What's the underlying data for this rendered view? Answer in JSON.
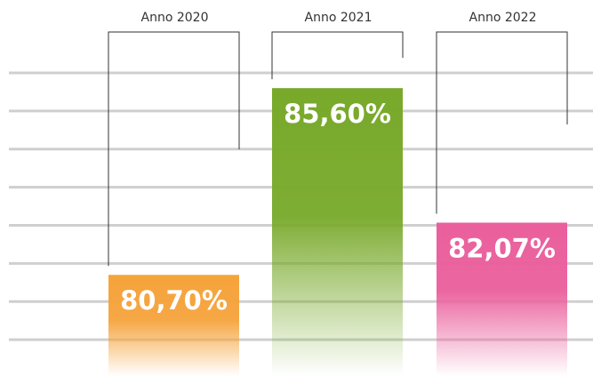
{
  "chart_data": {
    "type": "bar",
    "categories": [
      "Anno 2020",
      "Anno 2021",
      "Anno 2022"
    ],
    "values": [
      80.7,
      85.6,
      82.07
    ],
    "value_labels": [
      "80,70%",
      "85,60%",
      "82,07%"
    ],
    "colors": [
      "#f5a33b",
      "#78a92a",
      "#ea5f9c"
    ],
    "ylim": [
      78,
      86
    ],
    "yticks": [
      79,
      80,
      81,
      82,
      83,
      84,
      85,
      86
    ],
    "grid": true
  }
}
